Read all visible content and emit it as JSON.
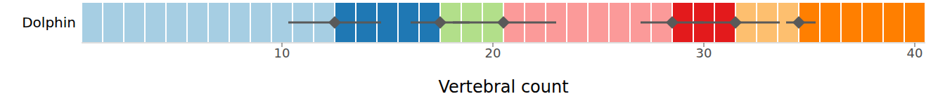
{
  "chart_data": {
    "type": "strip",
    "categories": [
      "Dolphin"
    ],
    "x_label": "Vertebral count",
    "xlim": [
      0.5,
      40.5
    ],
    "xticks": [
      10,
      20,
      30,
      40
    ],
    "regions": [
      {
        "start": 1,
        "end": 12,
        "color": "#a6cee3"
      },
      {
        "start": 13,
        "end": 17,
        "color": "#1f78b4"
      },
      {
        "start": 18,
        "end": 20,
        "color": "#b2df8a"
      },
      {
        "start": 21,
        "end": 28,
        "color": "#fb9a99"
      },
      {
        "start": 29,
        "end": 31,
        "color": "#e31a1c"
      },
      {
        "start": 32,
        "end": 34,
        "color": "#fdbf6f"
      },
      {
        "start": 35,
        "end": 40,
        "color": "#ff7f00"
      }
    ],
    "intervals": [
      {
        "value": 12.5,
        "low": 10.3,
        "high": 14.7
      },
      {
        "value": 17.5,
        "low": 16.1,
        "high": 18.9
      },
      {
        "value": 20.5,
        "low": 18.1,
        "high": 23.0
      },
      {
        "value": 28.5,
        "low": 27.0,
        "high": 30.0
      },
      {
        "value": 31.5,
        "low": 29.5,
        "high": 33.6
      },
      {
        "value": 34.5,
        "low": 33.9,
        "high": 35.3
      }
    ],
    "marker": "diamond",
    "color": "#595959"
  }
}
